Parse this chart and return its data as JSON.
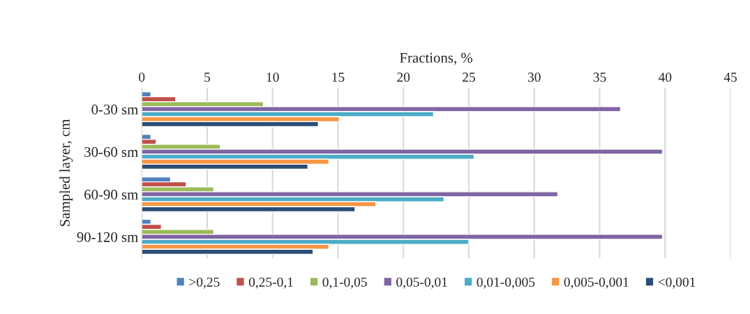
{
  "chart_data": {
    "type": "bar",
    "orientation": "horizontal",
    "xlabel": "Fractions, %",
    "ylabel": "Sampled layer, cm",
    "categories": [
      "0-30 sm",
      "30-60 sm",
      "60-90 sm",
      "90-120 sm"
    ],
    "series": [
      {
        "name": ">0,25",
        "color": "#4f81bd",
        "values": [
          0.7,
          0.7,
          2.2,
          0.7
        ]
      },
      {
        "name": "0,25-0,1",
        "color": "#c0504d",
        "values": [
          2.6,
          1.1,
          3.4,
          1.5
        ]
      },
      {
        "name": "0,1-0,05",
        "color": "#9bbb59",
        "values": [
          9.3,
          6.0,
          5.5,
          5.5
        ]
      },
      {
        "name": "0,05-0,01",
        "color": "#8064a2",
        "values": [
          36.6,
          39.8,
          31.8,
          39.8
        ]
      },
      {
        "name": "0,01-0,005",
        "color": "#4bacc6",
        "values": [
          22.3,
          25.4,
          23.1,
          25.0
        ]
      },
      {
        "name": "0,005-0,001",
        "color": "#f79646",
        "values": [
          15.1,
          14.3,
          17.9,
          14.3
        ]
      },
      {
        "name": "<0,001",
        "color": "#2c4d75",
        "values": [
          13.5,
          12.7,
          16.3,
          13.1
        ]
      }
    ],
    "xlim": [
      0,
      45
    ],
    "xticks": [
      0,
      5,
      10,
      15,
      20,
      25,
      30,
      35,
      40,
      45
    ],
    "grid": "x",
    "legend": "bottom"
  }
}
